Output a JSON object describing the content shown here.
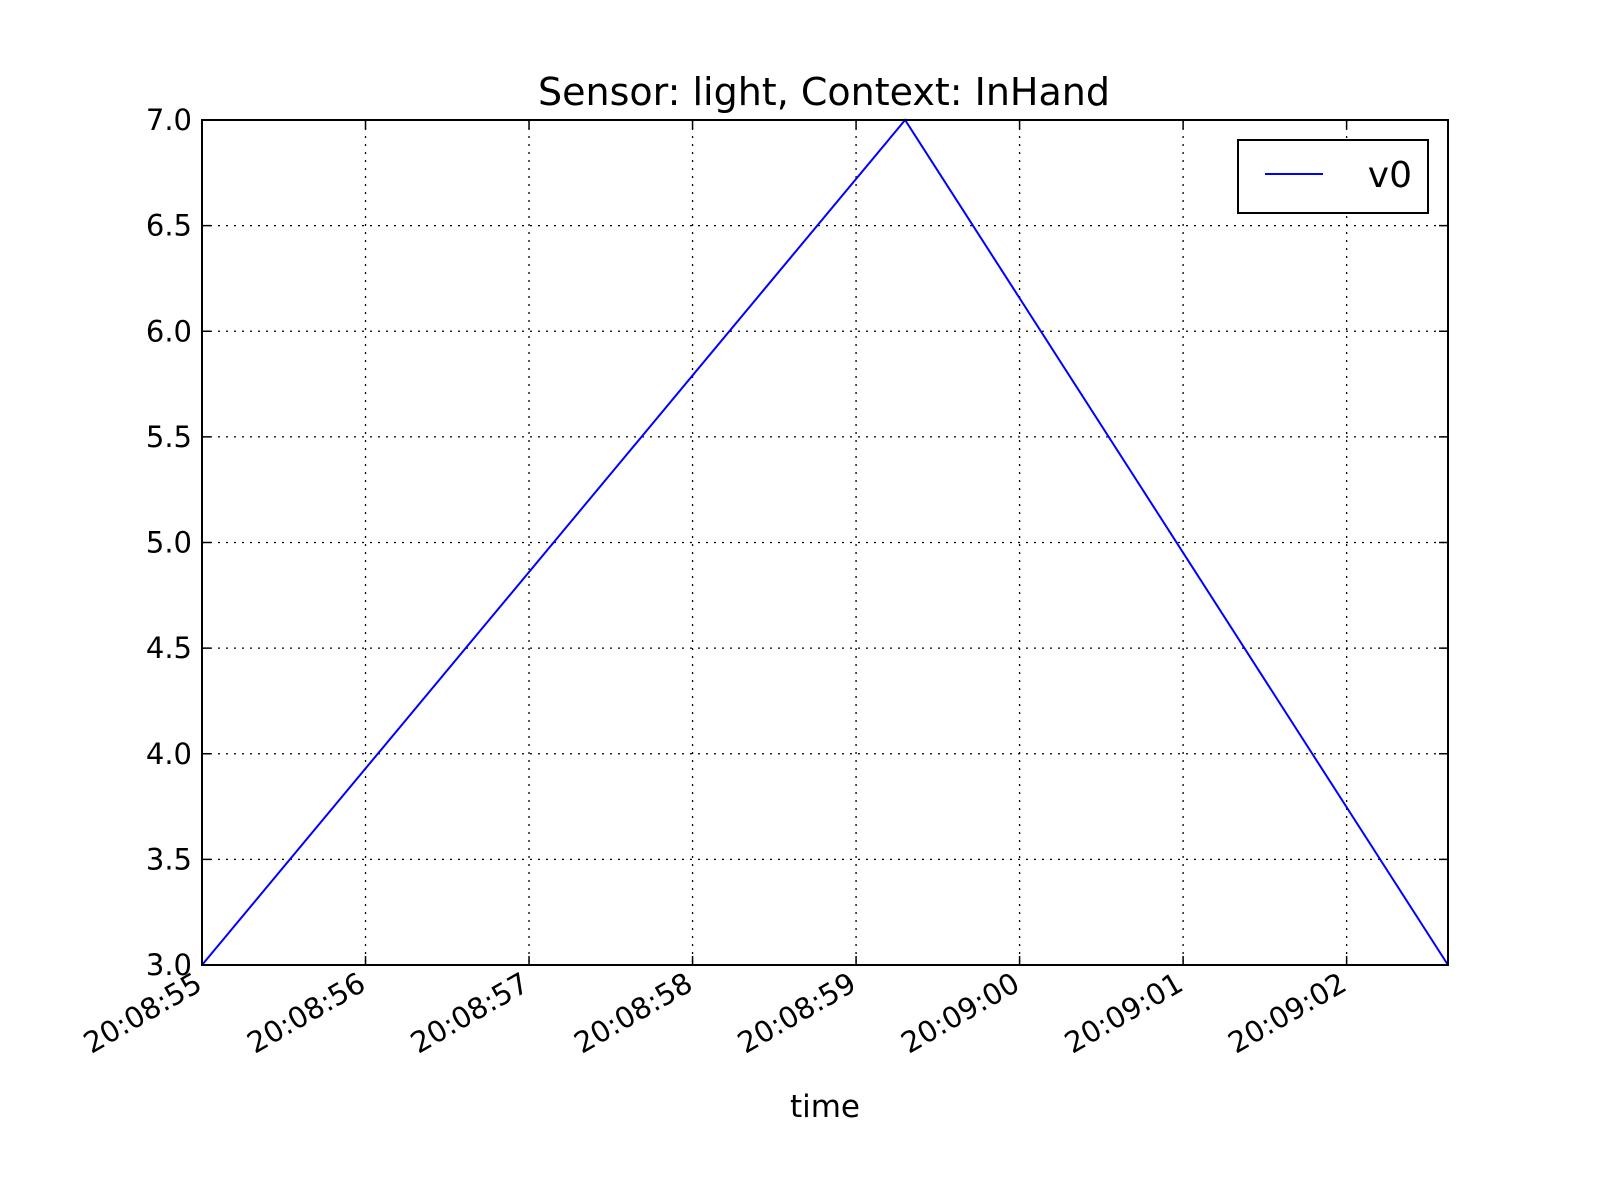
{
  "chart_data": {
    "type": "line",
    "title": "Sensor: light,  Context: InHand",
    "xlabel": "time",
    "ylabel": "",
    "x_ticks": [
      "20:08:55",
      "20:08:56",
      "20:08:57",
      "20:08:58",
      "20:08:59",
      "20:09:00",
      "20:09:01",
      "20:09:02"
    ],
    "x_tick_times": [
      "20:08:55",
      "20:08:56",
      "20:08:57",
      "20:08:58",
      "20:08:59",
      "20:09:00",
      "20:09:01",
      "20:09:02"
    ],
    "y_ticks": [
      "3.0",
      "3.5",
      "4.0",
      "4.5",
      "5.0",
      "5.5",
      "6.0",
      "6.5",
      "7.0"
    ],
    "xlim": [
      "20:08:55.00",
      "20:09:02.62"
    ],
    "ylim": [
      3.0,
      7.0
    ],
    "grid": true,
    "legend_position": "top-right",
    "series": [
      {
        "name": "v0",
        "color": "#0000ff",
        "x": [
          "20:08:55.00",
          "20:08:59.30",
          "20:09:02.62"
        ],
        "y": [
          3.0,
          7.0,
          3.0
        ]
      }
    ]
  }
}
